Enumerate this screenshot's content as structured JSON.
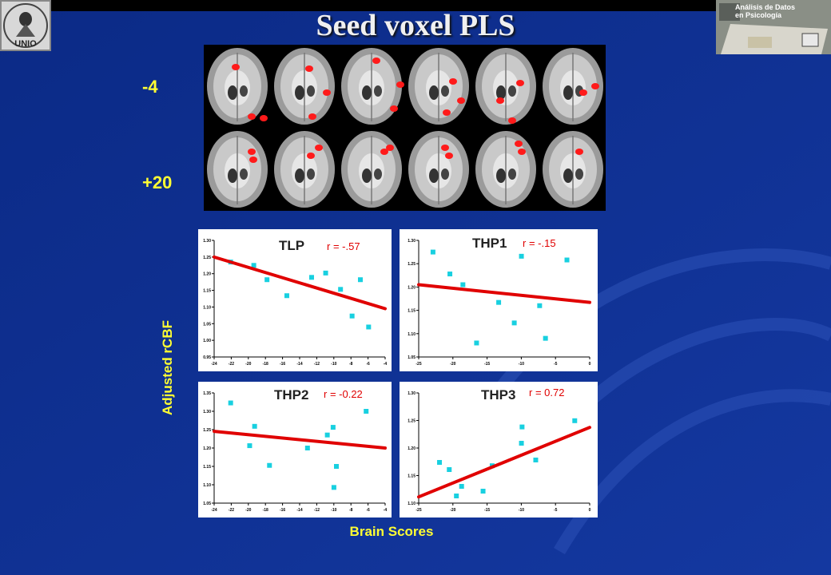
{
  "slide": {
    "title": "Seed voxel PLS",
    "logo_left_text": "UNIO",
    "logo_right_line1": "Análisis de Datos",
    "logo_right_line2": "en Psicología",
    "row_labels": [
      "-4",
      "+20"
    ],
    "y_axis_label": "Adjusted rCBF",
    "x_axis_label": "Brain Scores",
    "colors": {
      "background": "#0f2f8f",
      "text": "#ffff33",
      "fit_line": "#e00000",
      "points": "#18d0e0"
    }
  },
  "chart_data": [
    {
      "type": "scatter",
      "panel": "TLP",
      "annotation": "r = -.57",
      "x_ticks": [
        "-24",
        "-22",
        "-20",
        "-18",
        "-16",
        "-14",
        "-12",
        "-10",
        "-8",
        "-6",
        "-4"
      ],
      "y_ticks": [
        "1.30",
        "1.25",
        "1.20",
        "1.15",
        "1.10",
        "1.05",
        "1.00",
        "0.95"
      ],
      "xlim": [
        -24.5,
        -3.8
      ],
      "ylim": [
        0.95,
        1.3
      ],
      "points": [
        [
          -22.5,
          1.235
        ],
        [
          -19.7,
          1.225
        ],
        [
          -18.1,
          1.182
        ],
        [
          -15.7,
          1.134
        ],
        [
          -12.7,
          1.189
        ],
        [
          -11.0,
          1.202
        ],
        [
          -9.2,
          1.153
        ],
        [
          -7.8,
          1.073
        ],
        [
          -6.8,
          1.182
        ],
        [
          -5.8,
          1.04
        ]
      ],
      "fit": [
        [
          -24.5,
          1.25
        ],
        [
          -3.8,
          1.095
        ]
      ]
    },
    {
      "type": "scatter",
      "panel": "THP1",
      "annotation": "r = -.15",
      "x_ticks": [
        "-25",
        "-20",
        "-15",
        "-10",
        "-5",
        "0"
      ],
      "y_ticks": [
        "1.30",
        "1.25",
        "1.20",
        "1.15",
        "1.10",
        "1.05"
      ],
      "xlim": [
        -25.8,
        0.5
      ],
      "ylim": [
        1.05,
        1.3
      ],
      "points": [
        [
          -23.6,
          1.275
        ],
        [
          -21.0,
          1.228
        ],
        [
          -16.9,
          1.08
        ],
        [
          -13.5,
          1.167
        ],
        [
          -11.1,
          1.123
        ],
        [
          -10.0,
          1.266
        ],
        [
          -7.2,
          1.16
        ],
        [
          -6.3,
          1.09
        ],
        [
          -3.0,
          1.258
        ],
        [
          -19.0,
          1.205
        ]
      ],
      "fit": [
        [
          -25.8,
          1.205
        ],
        [
          0.5,
          1.167
        ]
      ]
    },
    {
      "type": "scatter",
      "panel": "THP2",
      "annotation": "r = -0.22",
      "x_ticks": [
        "-24",
        "-22",
        "-20",
        "-18",
        "-16",
        "-14",
        "-12",
        "-10",
        "-8",
        "-6",
        "-4"
      ],
      "y_ticks": [
        "1.35",
        "1.30",
        "1.25",
        "1.20",
        "1.15",
        "1.10",
        "1.05"
      ],
      "xlim": [
        -24.5,
        -3.8
      ],
      "ylim": [
        1.03,
        1.36
      ],
      "points": [
        [
          -22.5,
          1.33
        ],
        [
          -19.6,
          1.26
        ],
        [
          -20.2,
          1.202
        ],
        [
          -17.8,
          1.143
        ],
        [
          -13.2,
          1.195
        ],
        [
          -10.8,
          1.234
        ],
        [
          -10.1,
          1.257
        ],
        [
          -9.7,
          1.14
        ],
        [
          -10.0,
          1.077
        ],
        [
          -6.1,
          1.305
        ]
      ],
      "fit": [
        [
          -24.5,
          1.245
        ],
        [
          -3.8,
          1.195
        ]
      ]
    },
    {
      "type": "scatter",
      "panel": "THP3",
      "annotation": "r = 0.72",
      "x_ticks": [
        "-25",
        "-20",
        "-15",
        "-10",
        "-5",
        "0"
      ],
      "y_ticks": [
        "1.30",
        "1.25",
        "1.20",
        "1.15",
        "1.10"
      ],
      "xlim": [
        -25.8,
        0.5
      ],
      "ylim": [
        1.08,
        1.31
      ],
      "points": [
        [
          -22.6,
          1.165
        ],
        [
          -21.1,
          1.15
        ],
        [
          -20.0,
          1.095
        ],
        [
          -19.2,
          1.115
        ],
        [
          -15.9,
          1.105
        ],
        [
          -14.5,
          1.158
        ],
        [
          -10.0,
          1.205
        ],
        [
          -9.9,
          1.239
        ],
        [
          -7.8,
          1.17
        ],
        [
          -1.8,
          1.252
        ]
      ],
      "fit": [
        [
          -25.8,
          1.093
        ],
        [
          0.5,
          1.238
        ]
      ]
    }
  ]
}
